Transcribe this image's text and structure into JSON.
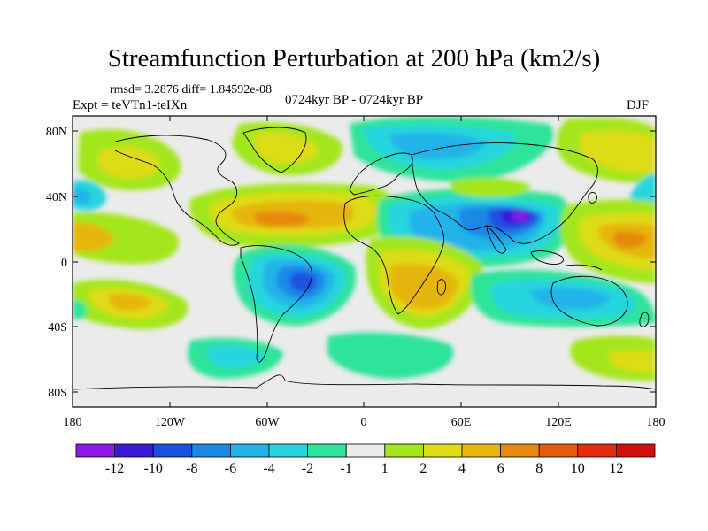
{
  "title": "Streamfunction Perturbation at 200 hPa (km2/s)",
  "stats": "rmsd= 3.2876 diff= 1.84592e-08",
  "experiment": "Expt = teVTn1-teIXn",
  "period": "0724kyr BP - 0724kyr BP",
  "season": "DJF",
  "axes": {
    "lat_ticks": [
      "80N",
      "40N",
      "0",
      "40S",
      "80S"
    ],
    "lon_ticks": [
      "180",
      "120W",
      "60W",
      "0",
      "60E",
      "120E",
      "180"
    ]
  },
  "colorbar": {
    "labels": [
      "-12",
      "-10",
      "-8",
      "-6",
      "-4",
      "-2",
      "-1",
      "1",
      "2",
      "4",
      "6",
      "8",
      "10",
      "12"
    ],
    "colors": [
      "#8b1ae6",
      "#3a18d8",
      "#1a52e0",
      "#1c88e6",
      "#20b4e8",
      "#25d5dd",
      "#2ee39a",
      "#ebebeb",
      "#a3e61e",
      "#dedc12",
      "#e6b50e",
      "#e68a10",
      "#e65a10",
      "#e62a10",
      "#d40d0d"
    ]
  }
}
